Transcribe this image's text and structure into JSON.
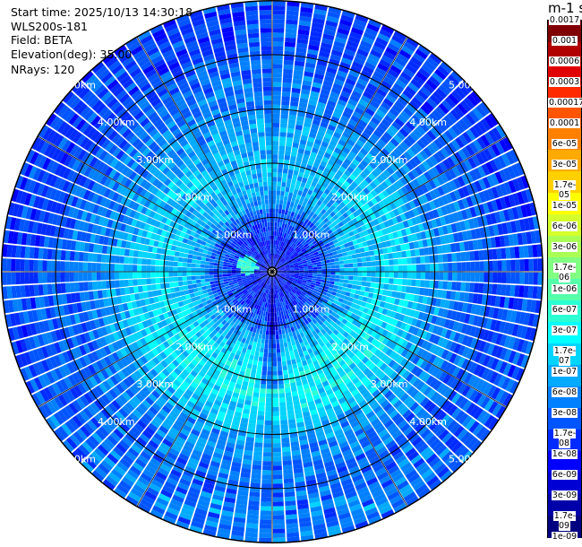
{
  "info": {
    "start_time": "Start time: 2025/10/13 14:30:18",
    "instrument": "WLS200s-181",
    "field": "Field: BETA",
    "elevation": "Elevation(deg): 35.00",
    "nrays": "NRays: 120"
  },
  "colorbar": {
    "title": "m-1 sr-1",
    "ticks": [
      "0.0017",
      "0.001",
      "0.0006",
      "0.0003",
      "0.00017",
      "0.0001",
      "6e-05",
      "3e-05",
      "1.7e-05",
      "1e-05",
      "6e-06",
      "3e-06",
      "1.7e-06",
      "1e-06",
      "6e-07",
      "3e-07",
      "1.7e-07",
      "1e-07",
      "6e-08",
      "3e-08",
      "1.7e-08",
      "1e-08",
      "6e-09",
      "3e-09",
      "1.7e-09",
      "1e-09"
    ],
    "colors": [
      "#800000",
      "#b00000",
      "#e00000",
      "#ff2a00",
      "#ff5500",
      "#ff8000",
      "#ffaa00",
      "#ffd000",
      "#ffff00",
      "#d4ff2b",
      "#aaff55",
      "#80ff80",
      "#55ffaa",
      "#2bffd4",
      "#00ffff",
      "#00d4ff",
      "#00aaff",
      "#0080ff",
      "#0055ff",
      "#002bff",
      "#0000ff",
      "#0000d4",
      "#0000aa",
      "#000080"
    ]
  },
  "chart_data": {
    "type": "heatmap",
    "projection": "polar (PPI scan)",
    "rays": 120,
    "field": "BETA",
    "units": "m-1 sr-1",
    "color_scale": "log",
    "range_rings_km": [
      1.0,
      2.0,
      3.0,
      4.0,
      5.0
    ],
    "ring_labels": [
      "1.00km",
      "2.00km",
      "3.00km",
      "4.00km",
      "5.00km"
    ],
    "azimuth_gridlines_deg": [
      0,
      30,
      60,
      90,
      120,
      150,
      180,
      210,
      240,
      270,
      300,
      330
    ],
    "typical_values": {
      "near_range_0_1km": "1e-08 to 6e-08",
      "mid_range_1.5_3.5km": "1e-07 to 6e-07",
      "far_range_4_6km": "1e-08 to 1.7e-07",
      "hotspot_west_0.5km": "1.7e-06 to 1e-05"
    }
  }
}
